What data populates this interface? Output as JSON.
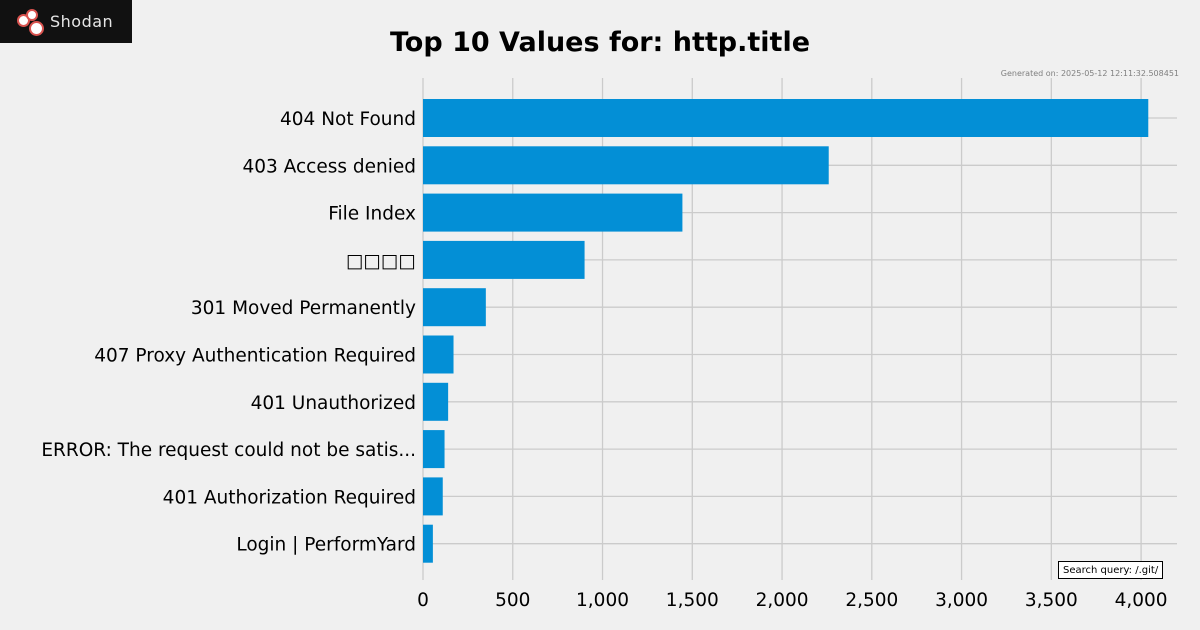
{
  "logo": {
    "text": "Shodan"
  },
  "generated": "Generated on: 2025-05-12 12:11:32.508451",
  "search_query": "Search query: /.git/",
  "chart_data": {
    "type": "bar",
    "orientation": "horizontal",
    "title": "Top 10 Values for: http.title",
    "xlabel": "",
    "ylabel": "",
    "categories": [
      "404 Not Found",
      "403 Access denied",
      "File Index",
      "□□□□",
      "301 Moved Permanently",
      "407 Proxy Authentication Required",
      "401 Unauthorized",
      "ERROR: The request could not be satis...",
      "401 Authorization Required",
      "Login | PerformYard"
    ],
    "values": [
      4040,
      2260,
      1445,
      900,
      350,
      170,
      140,
      120,
      110,
      55
    ],
    "xlim": [
      0,
      4200
    ],
    "xticks": [
      0,
      500,
      1000,
      1500,
      2000,
      2500,
      3000,
      3500,
      4000
    ],
    "xtick_labels": [
      "0",
      "500",
      "1,000",
      "1,500",
      "2,000",
      "2,500",
      "3,000",
      "3,500",
      "4,000"
    ],
    "grid": true,
    "bar_color": "#038fd6",
    "grid_color": "#cbcbcb"
  }
}
